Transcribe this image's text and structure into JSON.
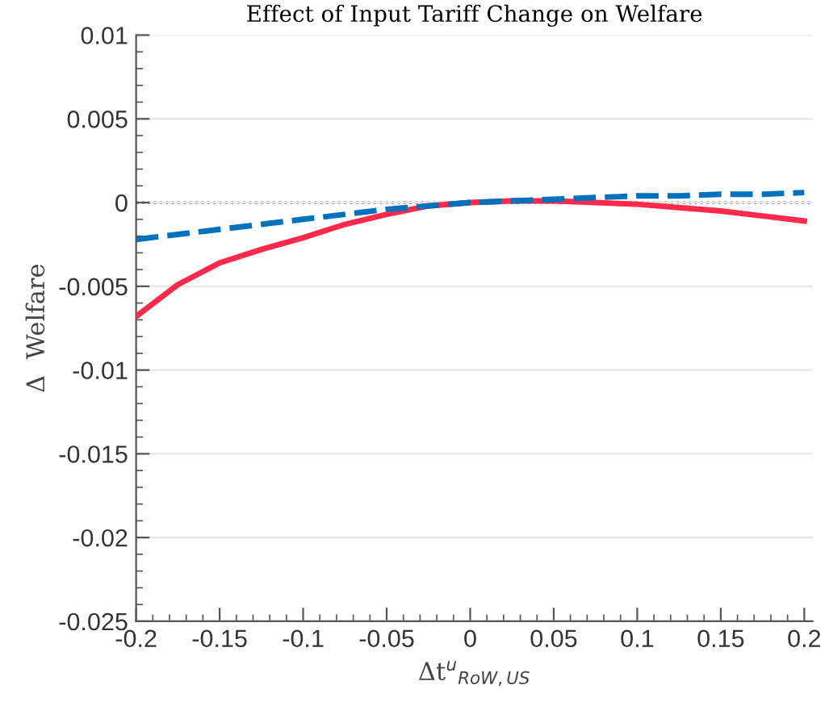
{
  "chart_data": {
    "type": "line",
    "title": "Effect of Input Tariff Change on Welfare",
    "xlabel": "Δt$^{u}$$_{RoW,US}$",
    "ylabel": "Δ  Welfare",
    "x": [
      -0.2,
      -0.175,
      -0.15,
      -0.125,
      -0.1,
      -0.075,
      -0.05,
      -0.025,
      0,
      0.025,
      0.05,
      0.075,
      0.1,
      0.125,
      0.15,
      0.175,
      0.2
    ],
    "series": [
      {
        "color": "#fe2a4b",
        "line_style": "solid",
        "values": [
          -0.0068,
          -0.0049,
          -0.0036,
          -0.0028,
          -0.0021,
          -0.0013,
          -0.0007,
          -0.0002,
          0,
          0.0001,
          0.0001,
          0.0,
          -0.0001,
          -0.0003,
          -0.0005,
          -0.0008,
          -0.0011
        ]
      },
      {
        "color": "#0072bd",
        "line_style": "dashed",
        "values": [
          -0.0022,
          -0.0019,
          -0.0016,
          -0.0013,
          -0.001,
          -0.0007,
          -0.0004,
          -0.0002,
          0,
          0.0001,
          0.0002,
          0.0003,
          0.0004,
          0.0004,
          0.0005,
          0.0005,
          0.0006
        ]
      }
    ],
    "xlim": [
      -0.2,
      0.205
    ],
    "ylim": [
      -0.025,
      0.01
    ],
    "xticks": [
      -0.2,
      -0.15,
      -0.1,
      -0.05,
      0,
      0.05,
      0.1,
      0.15,
      0.2
    ],
    "yticks": [
      -0.025,
      -0.02,
      -0.015,
      -0.01,
      -0.005,
      0,
      0.005,
      0.01
    ],
    "ref_lines": [
      {
        "axis": "y",
        "value": 0,
        "color": "#000000",
        "line_style": "dotted"
      }
    ],
    "grid": "y"
  }
}
